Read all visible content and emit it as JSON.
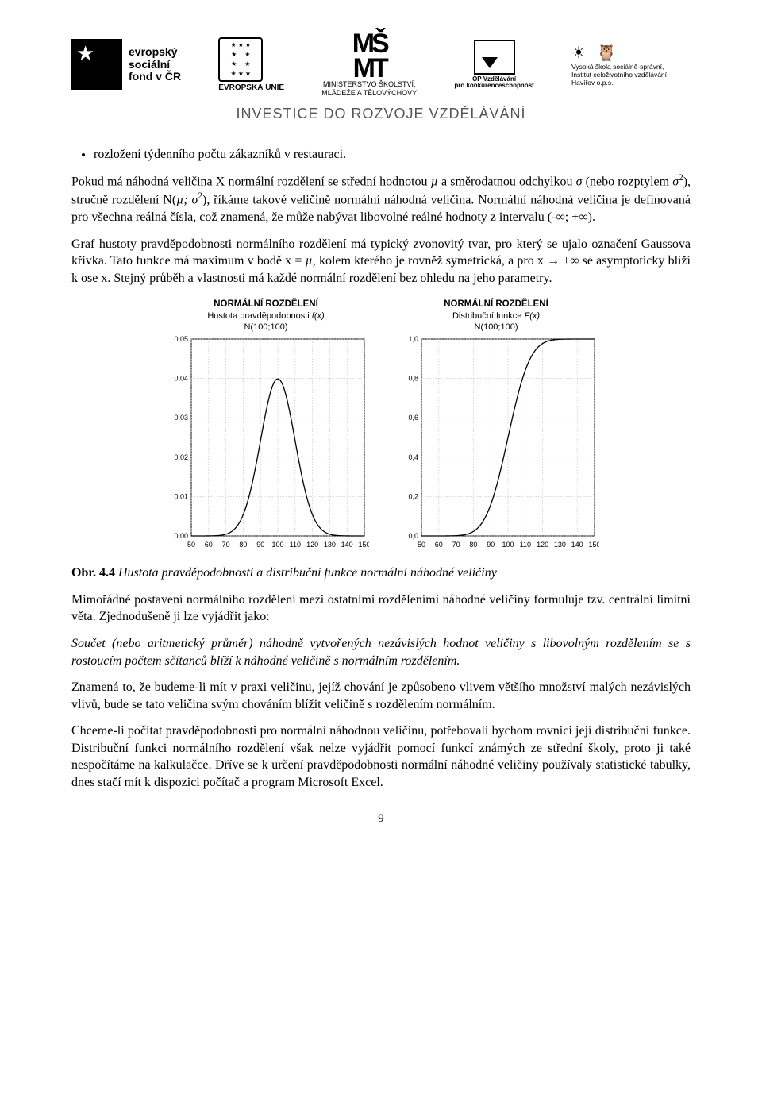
{
  "header": {
    "esf_line1": "evropský",
    "esf_line2": "sociální",
    "esf_line3": "fond v ČR",
    "eu_label": "EVROPSKÁ UNIE",
    "msmt_line1": "MINISTERSTVO ŠKOLSTVÍ,",
    "msmt_line2": "MLÁDEŽE A TĚLOVÝCHOVY",
    "op_line1": "OP Vzdělávání",
    "op_line2": "pro konkurenceschopnost",
    "vsss_line1": "Vysoká škola sociálně-správní,",
    "vsss_line2": "Institut celoživotního vzdělávání Havířov o.p.s.",
    "investice": "INVESTICE DO ROZVOJE VZDĚLÁVÁNÍ"
  },
  "text": {
    "bullet": "rozložení týdenního počtu zákazníků v restauraci.",
    "p1a": "Pokud má náhodná veličina X normální rozdělení se střední hodnotou ",
    "p1_mu": "µ",
    "p1b": " a směrodatnou odchylkou ",
    "p1_sigma": "σ",
    "p1c": " (nebo rozptylem ",
    "p1_sigma2": "σ",
    "p1d": "), stručně rozdělení N(",
    "p1_musemi": "µ; σ",
    "p1e": "), říkáme takové veličině normální náhodná veličina. Normální náhodná veličina je definovaná pro všechna reálná čísla, což znamená, že může nabývat libovolné reálné hodnoty z intervalu (-∞; +∞).",
    "p2a": "Graf hustoty pravděpodobnosti normálního rozdělení má typický zvonovitý tvar, pro který se ujalo označení Gaussova křivka. Tato funkce má maximum v bodě x = ",
    "p2_mu": "µ",
    "p2b": ", kolem kterého je rovněž symetrická, a pro x → ±∞ se asymptoticky blíží k ose x. Stejný průběh a vlastnosti má každé normální rozdělení bez ohledu na jeho parametry.",
    "caption_label": "Obr. 4.4",
    "caption_text": " Hustota pravděpodobnosti a distribuční funkce normální náhodné veličiny",
    "p3": "Mimořádné postavení normálního rozdělení mezi ostatními rozděleními náhodné veličiny formuluje tzv. centrální limitní věta. Zjednodušeně ji lze vyjádřit jako:",
    "p4": "Součet (nebo aritmetický průměr) náhodně vytvořených nezávislých hodnot veličiny s libovolným rozdělením se s rostoucím počtem sčítanců blíží k náhodné veličině s normálním rozdělením.",
    "p5": "Znamená to, že budeme-li mít v praxi veličinu, jejíž chování je způsobeno vlivem většího množství malých nezávislých vlivů, bude se tato veličina svým chováním blížit veličině s rozdělením normálním.",
    "p6": "Chceme-li počítat pravděpodobnosti pro normální náhodnou veličinu, potřebovali bychom rovnici její distribuční funkce. Distribuční funkci normálního rozdělení však nelze vyjádřit pomocí funkcí známých ze střední školy, proto ji také nespočítáme na kalkulačce. Dříve se k určení pravděpodobnosti normální náhodné veličiny používaly statistické tabulky, dnes stačí mít k dispozici počítač a program Microsoft Excel.",
    "page_number": "9"
  },
  "chart_pdf": {
    "title": "NORMÁLNÍ ROZDĚLENÍ",
    "subtitle_a": "Hustota pravděpodobnosti ",
    "subtitle_fx": "f(x)",
    "subtitle_n": "N(100;100)",
    "x_ticks": [
      "50",
      "60",
      "70",
      "80",
      "90",
      "100",
      "110",
      "120",
      "130",
      "140",
      "150"
    ],
    "y_ticks": [
      "0,00",
      "0,01",
      "0,02",
      "0,03",
      "0,04",
      "0,05"
    ],
    "xmin": 50,
    "xmax": 150,
    "ymin": 0,
    "ymax": 0.05,
    "mu": 100,
    "sigma": 10,
    "line_color": "#000000",
    "grid_color": "#bbbbbb",
    "background": "#ffffff"
  },
  "chart_cdf": {
    "title": "NORMÁLNÍ ROZDĚLENÍ",
    "subtitle_a": "Distribuční funkce ",
    "subtitle_fx": "F(x)",
    "subtitle_n": "N(100;100)",
    "x_ticks": [
      "50",
      "60",
      "70",
      "80",
      "90",
      "100",
      "110",
      "120",
      "130",
      "140",
      "150"
    ],
    "y_ticks": [
      "0,0",
      "0,2",
      "0,4",
      "0,6",
      "0,8",
      "1,0"
    ],
    "xmin": 50,
    "xmax": 150,
    "ymin": 0,
    "ymax": 1.0,
    "mu": 100,
    "sigma": 10,
    "line_color": "#000000",
    "grid_color": "#bbbbbb",
    "background": "#ffffff"
  }
}
